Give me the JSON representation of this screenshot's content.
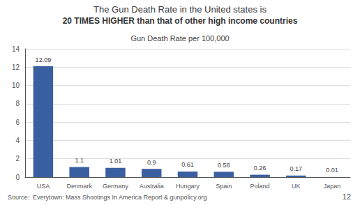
{
  "chart_data": {
    "type": "bar",
    "title": "The Gun Death Rate in the United states is",
    "subtitle": "20 TIMES HIGHER than that of other high income countries",
    "annotations": [
      "Gun Death Rate per 100,000",
      "Source:  Everytown: Mass Shootings In America Report & gunpolicy.org",
      "12"
    ],
    "categories": [
      "USA",
      "Denmark",
      "Germany",
      "Australia",
      "Hungary",
      "Spain",
      "Poland",
      "UK",
      "Japan"
    ],
    "values": [
      12.09,
      1.1,
      1.01,
      0.9,
      0.61,
      0.58,
      0.26,
      0.17,
      0.01
    ],
    "color": "#3a5fa0",
    "ylim": [
      0,
      14
    ],
    "yticks": [
      0,
      2,
      4,
      6,
      8,
      10,
      12,
      14
    ],
    "grid": true,
    "data_labels": true
  }
}
